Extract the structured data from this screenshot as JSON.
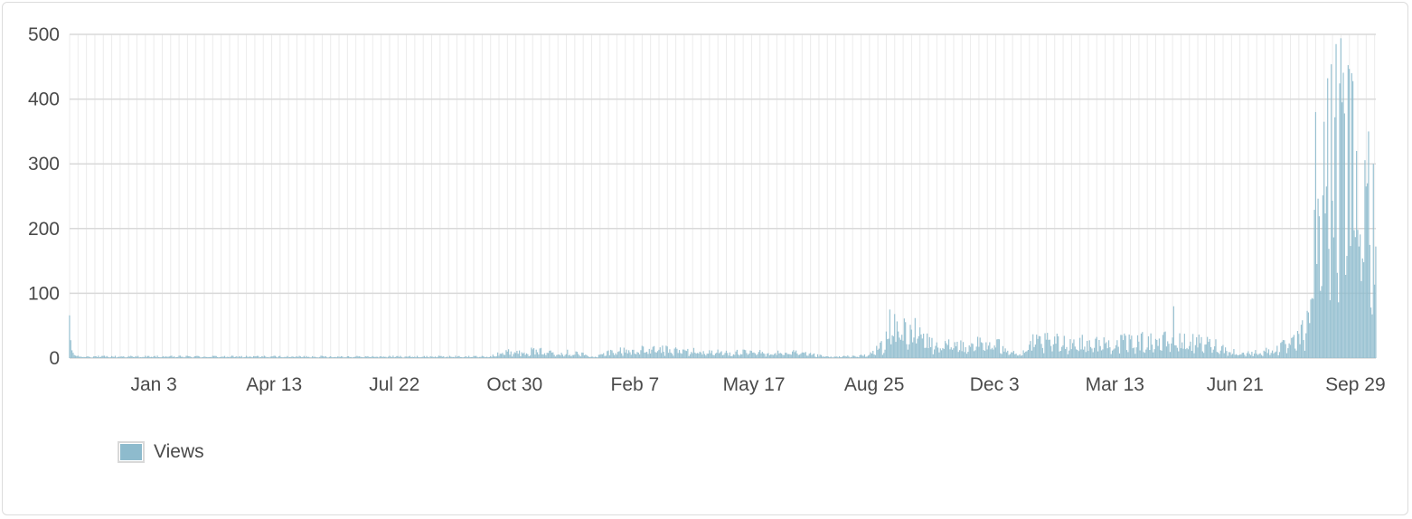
{
  "chart_data": {
    "type": "bar",
    "series": [
      {
        "name": "Views",
        "color": "#8ebbcd"
      }
    ],
    "ylim": [
      0,
      500
    ],
    "y_ticks": [
      0,
      100,
      200,
      300,
      400,
      500
    ],
    "x_range": [
      "2016-10-25",
      "2019-10-16"
    ],
    "x_ticks": [
      {
        "label": "Jan 3",
        "date": "2017-01-03"
      },
      {
        "label": "Apr 13",
        "date": "2017-04-13"
      },
      {
        "label": "Jul 22",
        "date": "2017-07-22"
      },
      {
        "label": "Oct 30",
        "date": "2017-10-30"
      },
      {
        "label": "Feb 7",
        "date": "2018-02-07"
      },
      {
        "label": "May 17",
        "date": "2018-05-17"
      },
      {
        "label": "Aug 25",
        "date": "2018-08-25"
      },
      {
        "label": "Dec 3",
        "date": "2018-12-03"
      },
      {
        "label": "Mar 13",
        "date": "2019-03-13"
      },
      {
        "label": "Jun 21",
        "date": "2019-06-21"
      },
      {
        "label": "Sep 29",
        "date": "2019-09-29"
      }
    ],
    "profile": [
      {
        "date": "2016-10-25",
        "value": 55
      },
      {
        "date": "2016-10-27",
        "value": 14
      },
      {
        "date": "2016-11-01",
        "value": 3
      },
      {
        "date": "2017-10-10",
        "value": 3
      },
      {
        "date": "2017-10-15",
        "value": 10
      },
      {
        "date": "2017-11-10",
        "value": 14
      },
      {
        "date": "2017-12-20",
        "value": 10
      },
      {
        "date": "2018-01-05",
        "value": 2
      },
      {
        "date": "2018-01-20",
        "value": 14
      },
      {
        "date": "2018-03-01",
        "value": 16
      },
      {
        "date": "2018-04-15",
        "value": 11
      },
      {
        "date": "2018-06-20",
        "value": 10
      },
      {
        "date": "2018-07-20",
        "value": 2
      },
      {
        "date": "2018-08-20",
        "value": 5
      },
      {
        "date": "2018-09-01",
        "value": 25
      },
      {
        "date": "2018-09-10",
        "value": 55
      },
      {
        "date": "2018-09-25",
        "value": 55
      },
      {
        "date": "2018-10-15",
        "value": 22
      },
      {
        "date": "2018-11-20",
        "value": 28
      },
      {
        "date": "2018-12-10",
        "value": 24
      },
      {
        "date": "2018-12-25",
        "value": 5
      },
      {
        "date": "2019-01-05",
        "value": 32
      },
      {
        "date": "2019-03-01",
        "value": 28
      },
      {
        "date": "2019-04-20",
        "value": 34
      },
      {
        "date": "2019-06-01",
        "value": 28
      },
      {
        "date": "2019-06-25",
        "value": 8
      },
      {
        "date": "2019-07-20",
        "value": 14
      },
      {
        "date": "2019-08-10",
        "value": 30
      },
      {
        "date": "2019-08-20",
        "value": 60
      },
      {
        "date": "2019-08-26",
        "value": 200
      },
      {
        "date": "2019-09-01",
        "value": 330
      },
      {
        "date": "2019-09-15",
        "value": 420
      },
      {
        "date": "2019-09-25",
        "value": 380
      },
      {
        "date": "2019-10-05",
        "value": 300
      },
      {
        "date": "2019-10-16",
        "value": 250
      }
    ],
    "peaks": [
      {
        "date": "2018-09-07",
        "value": 75
      },
      {
        "date": "2019-05-01",
        "value": 80
      },
      {
        "date": "2019-08-27",
        "value": 380
      },
      {
        "date": "2019-09-03",
        "value": 365
      },
      {
        "date": "2019-09-13",
        "value": 485
      },
      {
        "date": "2019-09-18",
        "value": 395
      },
      {
        "date": "2019-09-26",
        "value": 440
      },
      {
        "date": "2019-10-10",
        "value": 350
      },
      {
        "date": "2019-10-14",
        "value": 300
      }
    ],
    "grid": true,
    "legend_position": "bottom-left"
  },
  "legend": {
    "label": "Views"
  }
}
